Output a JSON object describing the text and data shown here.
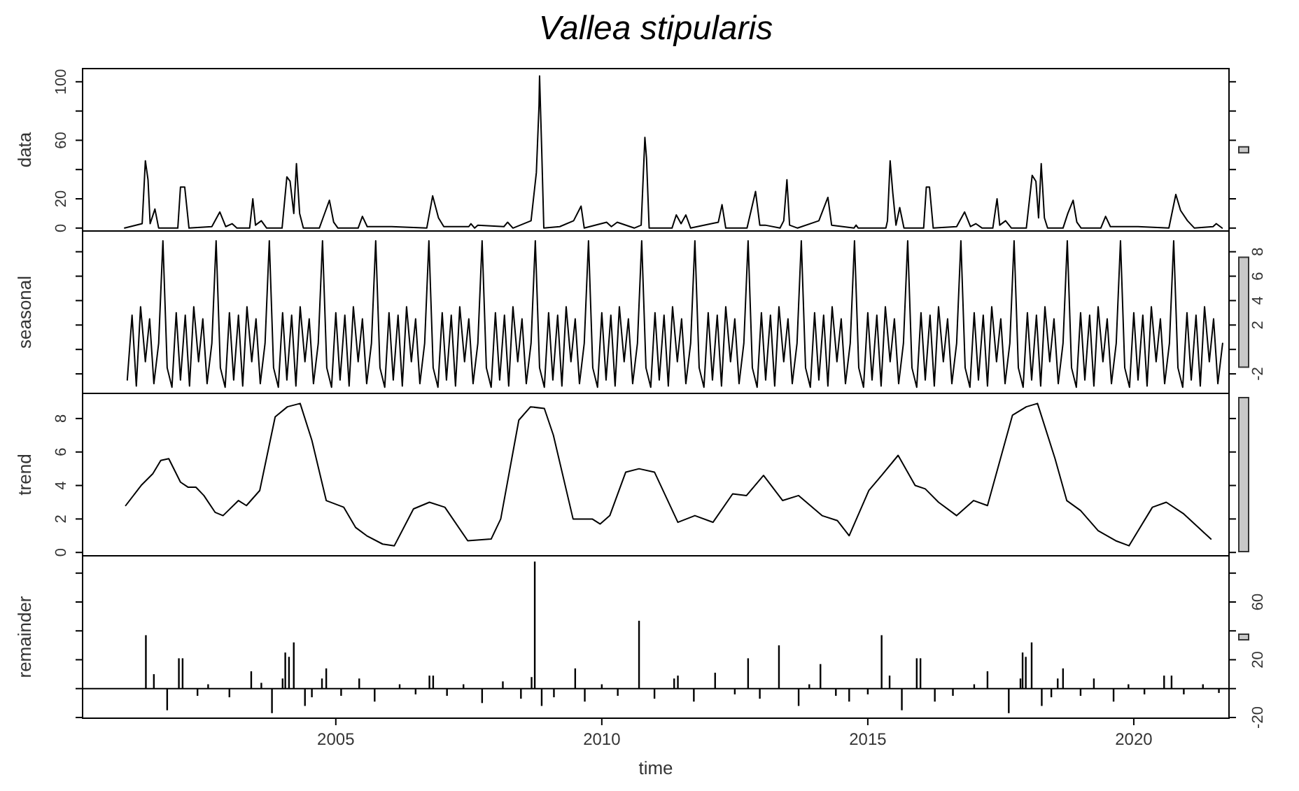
{
  "chart_data": [
    {
      "type": "line",
      "title": "Vallea stipularis",
      "ylabel": "data",
      "color": "#000000",
      "tick_labels": "y",
      "xlim": [
        2000.24,
        2021.79
      ],
      "ylim": [
        -2,
        109
      ],
      "yticks": [
        0,
        20,
        {
          "value": 40,
          "label": null
        },
        60,
        {
          "value": 80,
          "label": null
        },
        100
      ],
      "x": [
        2001.03,
        2001.36,
        2001.42,
        2001.47,
        2001.51,
        2001.6,
        2001.67,
        2002.03,
        2002.08,
        2002.16,
        2002.24,
        2002.67,
        2002.82,
        2002.93,
        2003.05,
        2003.14,
        2003.38,
        2003.44,
        2003.49,
        2003.6,
        2003.7,
        2003.99,
        2004.08,
        2004.14,
        2004.21,
        2004.26,
        2004.32,
        2004.39,
        2004.69,
        2004.78,
        2004.88,
        2004.96,
        2005.04,
        2005.42,
        2005.5,
        2005.59,
        2006.05,
        2006.71,
        2006.82,
        2006.93,
        2007.03,
        2007.5,
        2007.54,
        2007.61,
        2007.67,
        2008.16,
        2008.23,
        2008.33,
        2008.67,
        2008.77,
        2008.82,
        2008.83,
        2008.87,
        2008.91,
        2009.21,
        2009.47,
        2009.61,
        2009.67,
        2010.09,
        2010.18,
        2010.29,
        2010.61,
        2010.74,
        2010.81,
        2010.84,
        2010.89,
        2011.32,
        2011.4,
        2011.49,
        2011.58,
        2011.67,
        2012.06,
        2012.19,
        2012.26,
        2012.33,
        2012.73,
        2012.89,
        2012.97,
        2013.07,
        2013.35,
        2013.42,
        2013.48,
        2013.53,
        2013.68,
        2014.08,
        2014.25,
        2014.32,
        2014.74,
        2014.78,
        2014.82,
        2015.34,
        2015.37,
        2015.42,
        2015.47,
        2015.53,
        2015.6,
        2015.68,
        2016.05,
        2016.1,
        2016.16,
        2016.23,
        2016.67,
        2016.82,
        2016.93,
        2017.03,
        2017.15,
        2017.35,
        2017.43,
        2017.48,
        2017.59,
        2017.7,
        2017.98,
        2018.09,
        2018.16,
        2018.21,
        2018.26,
        2018.32,
        2018.38,
        2018.67,
        2018.76,
        2018.86,
        2018.93,
        2019.01,
        2019.38,
        2019.47,
        2019.56,
        2020.08,
        2020.66,
        2020.79,
        2020.88,
        2021.01,
        2021.14,
        2021.49,
        2021.55,
        2021.66
      ],
      "values": [
        0,
        3,
        46,
        33,
        3,
        13,
        0,
        0,
        28,
        28,
        0,
        1,
        11,
        1,
        3,
        0,
        0,
        20,
        2,
        5,
        0,
        0,
        35,
        32,
        10,
        44,
        10,
        0,
        0,
        9,
        19,
        4,
        0,
        0,
        8,
        1,
        1,
        0,
        22,
        7,
        1,
        1,
        3,
        0,
        2,
        1,
        4,
        0,
        5,
        38,
        84,
        104,
        54,
        0,
        1,
        5,
        15,
        0,
        4,
        1,
        4,
        0,
        2,
        62,
        48,
        0,
        0,
        9,
        3,
        9,
        0,
        3,
        4,
        16,
        0,
        0,
        25,
        2,
        2,
        0,
        5,
        33,
        2,
        0,
        5,
        21,
        2,
        0,
        2,
        0,
        0,
        5,
        46,
        24,
        2,
        14,
        0,
        0,
        28,
        28,
        0,
        1,
        11,
        1,
        3,
        0,
        0,
        20,
        2,
        5,
        0,
        0,
        36,
        32,
        7,
        44,
        7,
        0,
        0,
        10,
        19,
        4,
        0,
        0,
        8,
        1,
        1,
        0,
        23,
        12,
        5,
        0,
        1,
        3,
        0
      ]
    },
    {
      "type": "line",
      "ylabel": "seasonal",
      "color": "#000000",
      "tick_labels": "y",
      "xlim": [
        2000.24,
        2021.79
      ],
      "ylim": [
        -3.6,
        9.7
      ],
      "yticks": [
        -2,
        {
          "value": 0,
          "label": null
        },
        2,
        4,
        6,
        8
      ],
      "x": [
        2001.08,
        2001.17,
        2001.25,
        2001.33,
        2001.42,
        2001.5,
        2001.58,
        2001.67,
        2001.75,
        2001.83,
        2001.92,
        2002.0,
        2002.08,
        2002.17,
        2002.25,
        2002.33,
        2002.42,
        2002.5,
        2002.58,
        2002.67,
        2002.75,
        2002.83,
        2002.92,
        2003.0,
        2003.08,
        2003.17,
        2003.25,
        2003.33,
        2003.42,
        2003.5,
        2003.58,
        2003.67,
        2003.75,
        2003.83,
        2003.92,
        2004.0,
        2004.08,
        2004.17,
        2004.25,
        2004.33,
        2004.42,
        2004.5,
        2004.58,
        2004.67,
        2004.75,
        2004.83,
        2004.92,
        2005.0,
        2005.08,
        2005.17,
        2005.25,
        2005.33,
        2005.42,
        2005.5,
        2005.58,
        2005.67,
        2005.75,
        2005.83,
        2005.92,
        2006.0,
        2006.08,
        2006.17,
        2006.25,
        2006.33,
        2006.42,
        2006.5,
        2006.58,
        2006.67,
        2006.75,
        2006.83,
        2006.92,
        2007.0,
        2007.08,
        2007.17,
        2007.25,
        2007.33,
        2007.42,
        2007.5,
        2007.58,
        2007.67,
        2007.75,
        2007.83,
        2007.92,
        2008.0,
        2008.08,
        2008.17,
        2008.25,
        2008.33,
        2008.42,
        2008.5,
        2008.58,
        2008.67,
        2008.75,
        2008.83,
        2008.92,
        2009.0,
        2009.08,
        2009.17,
        2009.25,
        2009.33,
        2009.42,
        2009.5,
        2009.58,
        2009.67,
        2009.75,
        2009.83,
        2009.92,
        2010.0,
        2010.08,
        2010.17,
        2010.25,
        2010.33,
        2010.42,
        2010.5,
        2010.58,
        2010.67,
        2010.75,
        2010.83,
        2010.92,
        2011.0,
        2011.08,
        2011.17,
        2011.25,
        2011.33,
        2011.42,
        2011.5,
        2011.58,
        2011.67,
        2011.75,
        2011.83,
        2011.92,
        2012.0,
        2012.08,
        2012.17,
        2012.25,
        2012.33,
        2012.42,
        2012.5,
        2012.58,
        2012.67,
        2012.75,
        2012.83,
        2012.92,
        2013.0,
        2013.08,
        2013.17,
        2013.25,
        2013.33,
        2013.42,
        2013.5,
        2013.58,
        2013.67,
        2013.75,
        2013.83,
        2013.92,
        2014.0,
        2014.08,
        2014.17,
        2014.25,
        2014.33,
        2014.42,
        2014.5,
        2014.58,
        2014.67,
        2014.75,
        2014.83,
        2014.92,
        2015.0,
        2015.08,
        2015.17,
        2015.25,
        2015.33,
        2015.42,
        2015.5,
        2015.58,
        2015.67,
        2015.75,
        2015.83,
        2015.92,
        2016.0,
        2016.08,
        2016.17,
        2016.25,
        2016.33,
        2016.42,
        2016.5,
        2016.58,
        2016.67,
        2016.75,
        2016.83,
        2016.92,
        2017.0,
        2017.08,
        2017.17,
        2017.25,
        2017.33,
        2017.42,
        2017.5,
        2017.58,
        2017.67,
        2017.75,
        2017.83,
        2017.92,
        2018.0,
        2018.08,
        2018.17,
        2018.25,
        2018.33,
        2018.42,
        2018.5,
        2018.58,
        2018.67,
        2018.75,
        2018.83,
        2018.92,
        2019.0,
        2019.08,
        2019.17,
        2019.25,
        2019.33,
        2019.42,
        2019.5,
        2019.58,
        2019.67,
        2019.75,
        2019.83,
        2019.92,
        2020.0,
        2020.08,
        2020.17,
        2020.25,
        2020.33,
        2020.42,
        2020.5,
        2020.58,
        2020.67,
        2020.75,
        2020.83,
        2020.92,
        2021.0,
        2021.08,
        2021.17,
        2021.25,
        2021.33,
        2021.42,
        2021.5,
        2021.58,
        2021.67
      ],
      "values": [
        -2.5,
        2.8,
        -3,
        3.5,
        -1,
        2.5,
        -2.8,
        0.5,
        8.9,
        -1.5,
        -3.1,
        3,
        -2.5,
        2.8,
        -3,
        3.5,
        -1,
        2.5,
        -2.8,
        0.5,
        8.9,
        -1.5,
        -3.1,
        3,
        -2.5,
        2.8,
        -3,
        3.5,
        -1,
        2.5,
        -2.8,
        0.5,
        8.9,
        -1.5,
        -3.1,
        3,
        -2.5,
        2.8,
        -3,
        3.5,
        -1,
        2.5,
        -2.8,
        0.5,
        8.9,
        -1.5,
        -3.1,
        3,
        -2.5,
        2.8,
        -3,
        3.5,
        -1,
        2.5,
        -2.8,
        0.5,
        8.9,
        -1.5,
        -3.1,
        3,
        -2.5,
        2.8,
        -3,
        3.5,
        -1,
        2.5,
        -2.8,
        0.5,
        8.9,
        -1.5,
        -3.1,
        3,
        -2.5,
        2.8,
        -3,
        3.5,
        -1,
        2.5,
        -2.8,
        0.5,
        8.9,
        -1.5,
        -3.1,
        3,
        -2.5,
        2.8,
        -3,
        3.5,
        -1,
        2.5,
        -2.8,
        0.5,
        8.9,
        -1.5,
        -3.1,
        3,
        -2.5,
        2.8,
        -3,
        3.5,
        -1,
        2.5,
        -2.8,
        0.5,
        8.9,
        -1.5,
        -3.1,
        3,
        -2.5,
        2.8,
        -3,
        3.5,
        -1,
        2.5,
        -2.8,
        0.5,
        8.9,
        -1.5,
        -3.1,
        3,
        -2.5,
        2.8,
        -3,
        3.5,
        -1,
        2.5,
        -2.8,
        0.5,
        8.9,
        -1.5,
        -3.1,
        3,
        -2.5,
        2.8,
        -3,
        3.5,
        -1,
        2.5,
        -2.8,
        0.5,
        8.9,
        -1.5,
        -3.1,
        3,
        -2.5,
        2.8,
        -3,
        3.5,
        -1,
        2.5,
        -2.8,
        0.5,
        8.9,
        -1.5,
        -3.1,
        3,
        -2.5,
        2.8,
        -3,
        3.5,
        -1,
        2.5,
        -2.8,
        0.5,
        8.9,
        -1.5,
        -3.1,
        3,
        -2.5,
        2.8,
        -3,
        3.5,
        -1,
        2.5,
        -2.8,
        0.5,
        8.9,
        -1.5,
        -3.1,
        3,
        -2.5,
        2.8,
        -3,
        3.5,
        -1,
        2.5,
        -2.8,
        0.5,
        8.9,
        -1.5,
        -3.1,
        3,
        -2.5,
        2.8,
        -3,
        3.5,
        -1,
        2.5,
        -2.8,
        0.5,
        8.9,
        -1.5,
        -3.1,
        3,
        -2.5,
        2.8,
        -3,
        3.5,
        -1,
        2.5,
        -2.8,
        0.5,
        8.9,
        -1.5,
        -3.1,
        3,
        -2.5,
        2.8,
        -3,
        3.5,
        -1,
        2.5,
        -2.8,
        0.5,
        8.9,
        -1.5,
        -3.1,
        3,
        -2.5,
        2.8,
        -3,
        3.5,
        -1,
        2.5,
        -2.8,
        0.5,
        8.9,
        -1.5,
        -3.1,
        3,
        -2.5,
        2.8,
        -3,
        3.5,
        -1,
        2.5,
        -2.8,
        0.5
      ]
    },
    {
      "type": "line",
      "ylabel": "trend",
      "color": "#000000",
      "tick_labels": "y",
      "xlim": [
        2000.24,
        2021.79
      ],
      "ylim": [
        -0.2,
        9.5
      ],
      "yticks": [
        0,
        2,
        4,
        6,
        8
      ],
      "x": [
        2001.05,
        2001.34,
        2001.56,
        2001.71,
        2001.86,
        2002.08,
        2002.22,
        2002.37,
        2002.52,
        2002.73,
        2002.88,
        2003.17,
        2003.32,
        2003.57,
        2003.86,
        2004.09,
        2004.33,
        2004.55,
        2004.82,
        2005.15,
        2005.37,
        2005.58,
        2005.88,
        2006.1,
        2006.46,
        2006.76,
        2007.05,
        2007.48,
        2007.92,
        2008.1,
        2008.44,
        2008.66,
        2008.92,
        2009.09,
        2009.46,
        2009.82,
        2009.97,
        2010.15,
        2010.45,
        2010.7,
        2010.99,
        2011.43,
        2011.75,
        2012.09,
        2012.46,
        2012.72,
        2013.04,
        2013.4,
        2013.7,
        2014.14,
        2014.43,
        2014.65,
        2015.02,
        2015.26,
        2015.57,
        2015.89,
        2016.08,
        2016.33,
        2016.67,
        2016.99,
        2017.25,
        2017.72,
        2017.98,
        2018.19,
        2018.52,
        2018.74,
        2019.0,
        2019.33,
        2019.66,
        2019.91,
        2020.35,
        2020.61,
        2020.94,
        2021.45
      ],
      "values": [
        2.8,
        4,
        4.7,
        5.5,
        5.6,
        4.2,
        3.9,
        3.9,
        3.4,
        2.4,
        2.2,
        3.1,
        2.8,
        3.7,
        8.1,
        8.7,
        8.9,
        6.7,
        3.1,
        2.7,
        1.5,
        1,
        0.5,
        0.4,
        2.6,
        3,
        2.7,
        0.7,
        0.8,
        2,
        7.9,
        8.7,
        8.6,
        7,
        2,
        2,
        1.7,
        2.2,
        4.8,
        5,
        4.8,
        1.8,
        2.2,
        1.8,
        3.5,
        3.4,
        4.6,
        3.1,
        3.4,
        2.2,
        1.9,
        1,
        3.7,
        4.6,
        5.8,
        4,
        3.8,
        3,
        2.2,
        3.1,
        2.8,
        8.2,
        8.7,
        8.9,
        5.6,
        3.1,
        2.5,
        1.3,
        0.7,
        0.4,
        2.7,
        3,
        2.3,
        0.8
      ]
    },
    {
      "type": "bar",
      "ylabel": "remainder",
      "xlabel": "time",
      "color": "#000000",
      "xlim": [
        2000.24,
        2021.79
      ],
      "xticks": [
        2005,
        2010,
        2015,
        2020
      ],
      "ylim": [
        -20.5,
        92
      ],
      "yticks": [
        -20,
        {
          "value": 0,
          "label": null
        },
        20,
        {
          "value": 40,
          "label": null
        },
        60,
        {
          "value": 80,
          "label": null
        }
      ],
      "ref_lines": [
        {
          "axis": "y",
          "value": 0,
          "color": "#000000"
        }
      ],
      "x": [
        2001.43,
        2001.58,
        2001.83,
        2002.05,
        2002.12,
        2002.4,
        2002.6,
        2003.0,
        2003.41,
        2003.6,
        2003.8,
        2004.0,
        2004.05,
        2004.12,
        2004.21,
        2004.42,
        2004.55,
        2004.74,
        2004.82,
        2005.1,
        2005.44,
        2005.73,
        2006.2,
        2006.5,
        2006.76,
        2006.83,
        2007.09,
        2007.4,
        2007.75,
        2008.14,
        2008.48,
        2008.68,
        2008.74,
        2008.87,
        2009.1,
        2009.5,
        2009.68,
        2010.0,
        2010.3,
        2010.7,
        2010.99,
        2011.36,
        2011.43,
        2011.73,
        2012.13,
        2012.5,
        2012.75,
        2012.97,
        2013.33,
        2013.7,
        2013.9,
        2014.11,
        2014.4,
        2014.65,
        2015.0,
        2015.26,
        2015.41,
        2015.64,
        2015.92,
        2015.99,
        2016.26,
        2016.6,
        2017.0,
        2017.25,
        2017.65,
        2017.87,
        2017.91,
        2017.97,
        2018.08,
        2018.27,
        2018.45,
        2018.57,
        2018.67,
        2019.0,
        2019.25,
        2019.62,
        2019.9,
        2020.2,
        2020.57,
        2020.71,
        2020.94,
        2021.3,
        2021.6
      ],
      "values": [
        37,
        10,
        -15,
        21,
        21,
        -5,
        3,
        -6,
        12,
        4,
        -17,
        7,
        25,
        22,
        32,
        -12,
        -6,
        7,
        14,
        -5,
        7,
        -9,
        3,
        -4,
        9,
        9,
        -5,
        3,
        -10,
        5,
        -7,
        8,
        88,
        -12,
        -6,
        14,
        -9,
        3,
        -5,
        47,
        -7,
        7,
        9,
        -9,
        11,
        -4,
        21,
        -7,
        30,
        -12,
        3,
        17,
        -5,
        -9,
        -4,
        37,
        9,
        -15,
        21,
        21,
        -9,
        -5,
        3,
        12,
        -17,
        7,
        25,
        22,
        32,
        -12,
        -6,
        7,
        14,
        -5,
        7,
        -9,
        3,
        -4,
        9,
        9,
        -4,
        3,
        -3
      ]
    }
  ]
}
